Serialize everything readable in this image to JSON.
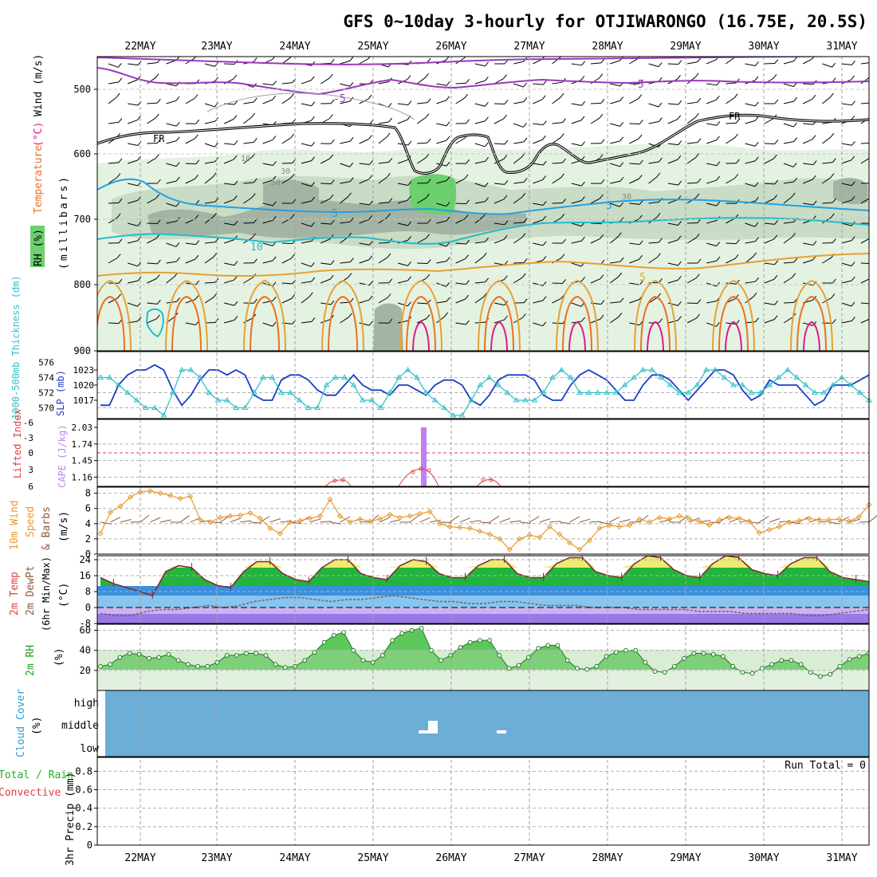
{
  "title": "GFS 0~10day 3-hourly for OTJIWARONGO (16.75E, 20.5S)",
  "colors": {
    "rh_light": "#e4f2e2",
    "rh_mid": "#c8dcc6",
    "rh_dark": "#a4b4a4",
    "rh_green": "#6cd06c",
    "temp_purple": "#9a38c0",
    "temp_blue": "#22a0e6",
    "temp_cyan": "#22bcc8",
    "temp_orange": "#e8a030",
    "temp_dkorange": "#ec7020",
    "temp_magenta": "#dc1c8c",
    "slp": "#1c3cc8",
    "thickness": "#36c0c8",
    "cape": "#c080f0",
    "lifted": "#e04040",
    "wind": "#e89a30",
    "barb": "#8c5a3c",
    "cloud": "#6caed6",
    "sky": "#ffffff"
  },
  "dates": [
    "22MAY",
    "23MAY",
    "24MAY",
    "25MAY",
    "26MAY",
    "27MAY",
    "28MAY",
    "29MAY",
    "30MAY",
    "31MAY"
  ],
  "panels": {
    "upper": {
      "ylabel_parts": [
        "RH (%)",
        "Temperature",
        "(°C)",
        "Wind (m/s)"
      ],
      "yunit": "(millibars)",
      "ticks": [
        "500",
        "600",
        "700",
        "800",
        "900"
      ],
      "contour_labels": [
        "-5",
        "-5",
        "FR",
        "FR",
        "5",
        "5",
        "10",
        "5",
        "30",
        "50",
        "10",
        "30"
      ]
    },
    "slp": {
      "thick_label": "1000-500mb Thickness (dm)",
      "slp_label": "SLP (mb)",
      "thick_ticks": [
        "576",
        "574",
        "572",
        "570"
      ],
      "slp_ticks": [
        "1023",
        "1020",
        "1017"
      ]
    },
    "cape": {
      "li_label": "Lifted Index",
      "cape_label": "CAPE (J/kg)",
      "li_ticks": [
        "-6",
        "-3",
        "0",
        "3",
        "6"
      ],
      "cape_ticks": [
        "2.03",
        "1.74",
        "1.45",
        "1.16"
      ]
    },
    "wind": {
      "label_a": "10m Wind",
      "label_b": "Speed",
      "label_c": "& Barbs",
      "unit": "(m/s)",
      "ticks": [
        "8",
        "6",
        "4",
        "2",
        "0"
      ]
    },
    "temp": {
      "label_a": "2m Temp",
      "label_b": "2m DewPt",
      "label_c": "(6hr Min/Max)",
      "unit": "(°C)",
      "ticks": [
        "24",
        "16",
        "8",
        "0",
        "-8"
      ]
    },
    "rh": {
      "label": "2m RH",
      "unit": "(%)",
      "ticks": [
        "60",
        "40",
        "20"
      ]
    },
    "cloud": {
      "label": "Cloud Cover",
      "unit": "(%)",
      "levels": [
        "high",
        "middle",
        "low"
      ]
    },
    "precip": {
      "label_a": "Total / Rain",
      "label_b": "Convective",
      "label_c": "3hr Precip (mm)",
      "run_total": "Run Total = 0",
      "ticks": [
        "0.8",
        "0.6",
        "0.4",
        "0.2",
        "0"
      ]
    }
  },
  "chart_data": [
    {
      "type": "line",
      "title": "SLP (mb)",
      "ylim": [
        1014,
        1026
      ],
      "series": [
        {
          "name": "SLP (mb)",
          "values": [
            1016,
            1016,
            1020,
            1022,
            1023,
            1023,
            1024,
            1023,
            1019,
            1016,
            1018,
            1021,
            1023,
            1023,
            1022,
            1023,
            1022,
            1018,
            1017,
            1017,
            1021,
            1022,
            1022,
            1021,
            1019,
            1018,
            1018,
            1020,
            1022,
            1020,
            1019,
            1019,
            1018,
            1020,
            1020,
            1019,
            1018,
            1020,
            1021,
            1021,
            1020,
            1017,
            1016,
            1018,
            1021,
            1022,
            1022,
            1022,
            1021,
            1018,
            1017,
            1017,
            1020,
            1022,
            1023,
            1022,
            1021,
            1019,
            1017,
            1017,
            1020,
            1022,
            1022,
            1021,
            1019,
            1017,
            1019,
            1021,
            1023,
            1023,
            1022,
            1019,
            1017,
            1018,
            1021,
            1020,
            1020,
            1020,
            1018,
            1016,
            1017,
            1020,
            1020,
            1020,
            1021,
            1022
          ]
        }
      ]
    },
    {
      "type": "line",
      "title": "1000-500mb Thickness (dm)",
      "ylim": [
        569,
        577
      ],
      "series": [
        {
          "name": "1000-500mb Thickness (dm)",
          "values": [
            574,
            574,
            573,
            572,
            571,
            570,
            570,
            569,
            572,
            575,
            575,
            574,
            572,
            571,
            571,
            570,
            570,
            572,
            574,
            574,
            572,
            572,
            571,
            570,
            570,
            573,
            574,
            574,
            573,
            571,
            571,
            570,
            572,
            574,
            575,
            574,
            572,
            571,
            570,
            569,
            569,
            571,
            573,
            574,
            573,
            572,
            571,
            571,
            571,
            572,
            574,
            575,
            574,
            572,
            572,
            572,
            572,
            572,
            573,
            574,
            575,
            575,
            574,
            573,
            572,
            572,
            573,
            575,
            575,
            574,
            573,
            573,
            572,
            572,
            573,
            574,
            575,
            574,
            573,
            572,
            572,
            573,
            574,
            573,
            572,
            571
          ]
        }
      ]
    },
    {
      "type": "bar",
      "title": "CAPE (J/kg)",
      "categories": [
        "25MAY 15Z"
      ],
      "values": [
        2.03
      ]
    },
    {
      "type": "line",
      "title": "10m Wind Speed (m/s)",
      "ylim": [
        0,
        8
      ],
      "series": [
        {
          "name": "10m Wind Speed",
          "values": [
            2.7,
            5.5,
            6.3,
            7.5,
            8.2,
            8.3,
            8.0,
            7.7,
            7.3,
            7.6,
            4.5,
            4.2,
            4.8,
            5.0,
            5.1,
            5.4,
            4.7,
            3.4,
            2.7,
            4.2,
            4.4,
            4.7,
            5.0,
            7.2,
            5.0,
            4.2,
            4.6,
            4.3,
            4.6,
            5.2,
            4.8,
            5.0,
            5.3,
            5.6,
            4.0,
            3.6,
            3.5,
            3.4,
            3.0,
            2.6,
            2.0,
            0.6,
            2.0,
            2.5,
            2.2,
            3.6,
            2.6,
            1.5,
            0.6,
            1.8,
            3.4,
            3.8,
            3.6,
            3.8,
            4.6,
            4.2,
            4.8,
            4.6,
            5.0,
            4.6,
            4.3,
            3.8,
            4.5,
            4.8,
            4.7,
            4.3,
            2.8,
            3.2,
            3.6,
            4.2,
            4.4,
            4.7,
            4.5,
            4.5,
            4.6,
            4.3,
            4.9,
            6.5
          ]
        }
      ]
    },
    {
      "type": "line",
      "title": "2m Temp (°C)",
      "ylim": [
        -8,
        26
      ],
      "series": [
        {
          "name": "2m Temp",
          "values": [
            15,
            12,
            10,
            8,
            6,
            18,
            21,
            20,
            14,
            11,
            10,
            18,
            23,
            23,
            17,
            14,
            13,
            20,
            24,
            24,
            17,
            15,
            14,
            21,
            24,
            23,
            17,
            15,
            15,
            21,
            24,
            24,
            17,
            15,
            15,
            22,
            25,
            25,
            18,
            16,
            15,
            22,
            26,
            25,
            19,
            16,
            15,
            22,
            26,
            25,
            19,
            17,
            16,
            22,
            25,
            25,
            18,
            15,
            14,
            13
          ]
        },
        {
          "name": "2m DewPt",
          "values": [
            -3,
            -4,
            -4,
            -2,
            -1,
            -1,
            0,
            1,
            0,
            1,
            3,
            4,
            5,
            5,
            4,
            3,
            4,
            4,
            5,
            6,
            5,
            4,
            3,
            3,
            2,
            2,
            3,
            3,
            2,
            1,
            1,
            1,
            0,
            0,
            0,
            -1,
            -1,
            -1,
            -1,
            -2,
            -2,
            -2,
            -3,
            -3,
            -3,
            -3,
            -4,
            -4,
            -3,
            -2,
            -1
          ]
        }
      ]
    },
    {
      "type": "area",
      "title": "2m RH (%)",
      "ylim": [
        0,
        65
      ],
      "series": [
        {
          "name": "2m RH",
          "values": [
            24,
            26,
            33,
            37,
            36,
            32,
            33,
            36,
            30,
            26,
            24,
            24,
            28,
            35,
            35,
            37,
            37,
            35,
            26,
            23,
            24,
            30,
            38,
            48,
            55,
            58,
            40,
            30,
            28,
            35,
            50,
            57,
            60,
            62,
            40,
            30,
            35,
            43,
            48,
            50,
            50,
            35,
            22,
            25,
            33,
            42,
            45,
            45,
            30,
            22,
            21,
            24,
            34,
            38,
            40,
            40,
            28,
            19,
            18,
            24,
            32,
            37,
            37,
            36,
            34,
            24,
            18,
            17,
            22,
            26,
            30,
            30,
            26,
            18,
            14,
            16,
            24,
            31,
            34,
            37
          ]
        }
      ]
    }
  ]
}
